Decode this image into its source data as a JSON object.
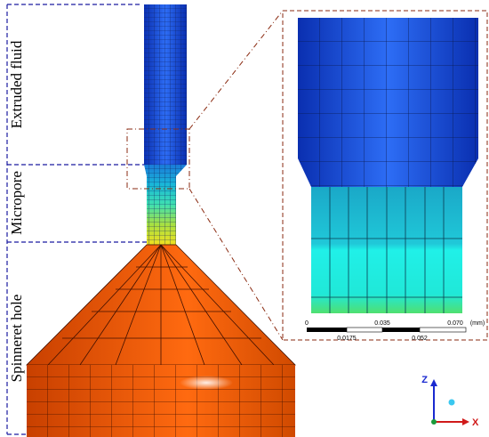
{
  "labels": {
    "extruded_fluid": "Extruded fluid",
    "micropore": "Micropore",
    "spinneret_hole": "Spinneret hole"
  },
  "scale_bar": {
    "top": [
      "0",
      "0.035",
      "0.070"
    ],
    "unit": "(mm)",
    "bottom": [
      "0.0175",
      "0.052"
    ]
  },
  "axes": {
    "z": "Z",
    "x": "X"
  }
}
